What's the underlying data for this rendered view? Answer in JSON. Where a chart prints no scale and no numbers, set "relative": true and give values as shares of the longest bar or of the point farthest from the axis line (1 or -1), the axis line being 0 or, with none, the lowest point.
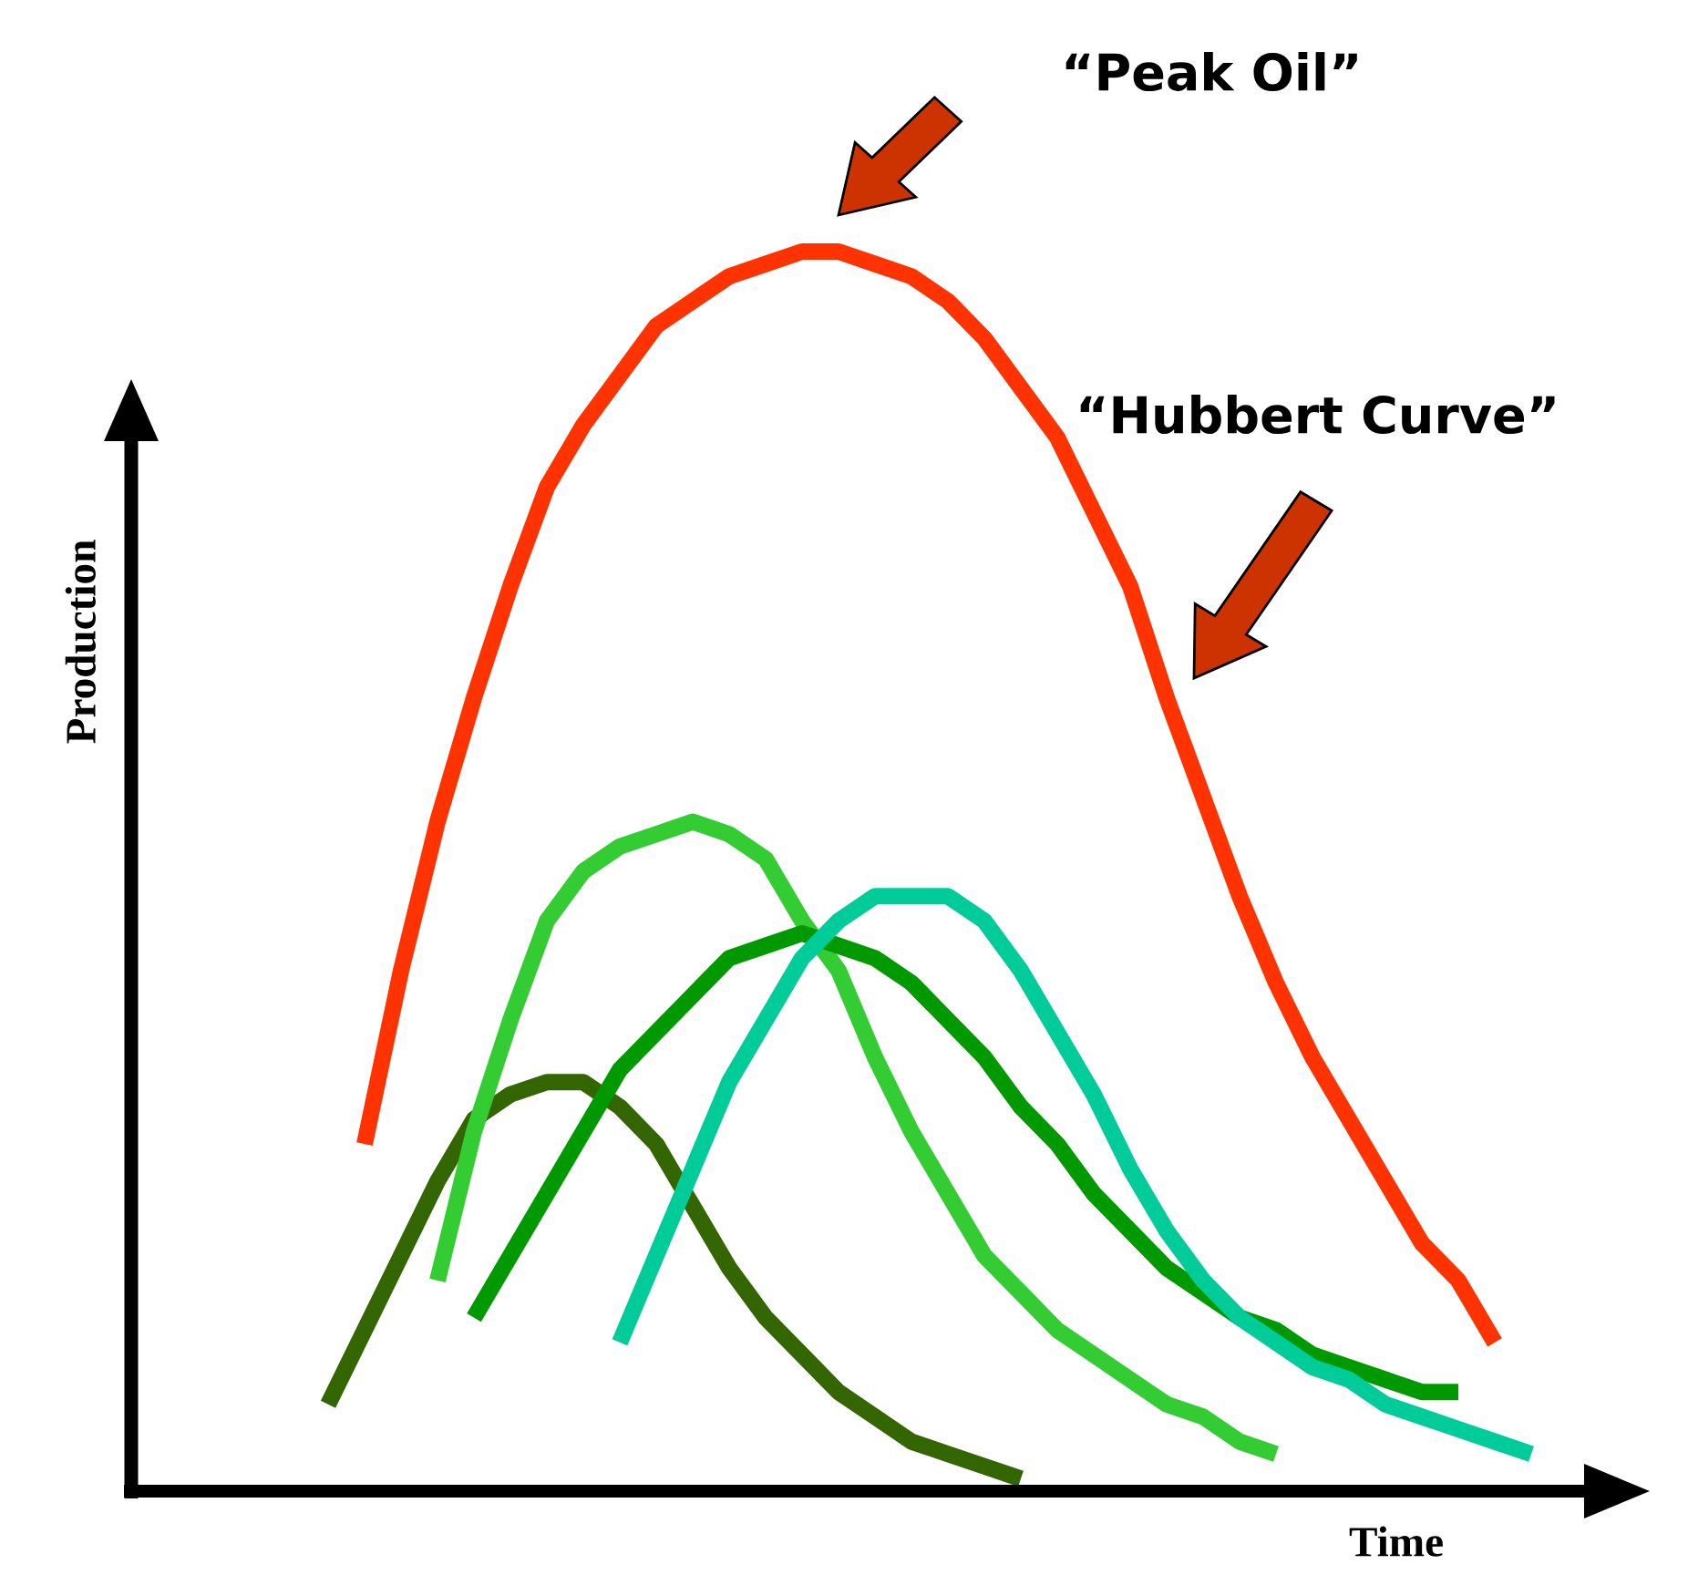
{
  "chart_data": {
    "type": "line",
    "relative": true,
    "xlabel": "Time",
    "ylabel": "Production",
    "categories": [
      null,
      null,
      null,
      null,
      null,
      null,
      null,
      null,
      null,
      null,
      null,
      null,
      null,
      null,
      null,
      null,
      null,
      null,
      null,
      null,
      null,
      null,
      null,
      null,
      null,
      null,
      null,
      null,
      null,
      null,
      null,
      null,
      null,
      null
    ],
    "series": [
      {
        "color": "#ff3300",
        "values": [
          null,
          0.28,
          0.42,
          0.54,
          0.64,
          0.73,
          0.81,
          0.86,
          0.9,
          0.94,
          0.96,
          0.98,
          0.99,
          1.0,
          1.0,
          0.99,
          0.98,
          0.96,
          0.93,
          0.89,
          0.85,
          0.79,
          0.73,
          0.64,
          0.56,
          0.48,
          0.41,
          0.35,
          0.3,
          0.25,
          0.2,
          0.17,
          0.12,
          null
        ]
      },
      {
        "color": "#336600",
        "values": [
          0.07,
          0.13,
          0.19,
          0.25,
          0.3,
          0.32,
          0.33,
          0.33,
          0.31,
          0.28,
          0.23,
          0.18,
          0.14,
          0.11,
          0.08,
          0.06,
          0.04,
          0.03,
          0.02,
          0.01,
          null,
          null,
          null,
          null,
          null,
          null,
          null,
          null,
          null,
          null,
          null,
          null,
          null,
          null
        ]
      },
      {
        "color": "#33cc33",
        "values": [
          null,
          null,
          null,
          0.17,
          0.29,
          0.38,
          0.46,
          0.5,
          0.52,
          0.53,
          0.54,
          0.53,
          0.51,
          0.46,
          0.42,
          0.35,
          0.29,
          0.24,
          0.19,
          0.16,
          0.13,
          0.11,
          0.09,
          0.07,
          0.06,
          0.04,
          0.03,
          null,
          null,
          null,
          null,
          null,
          null,
          null
        ]
      },
      {
        "color": "#009900",
        "values": [
          null,
          null,
          null,
          null,
          0.14,
          0.19,
          0.24,
          0.29,
          0.34,
          0.37,
          0.4,
          0.43,
          0.44,
          0.45,
          0.44,
          0.43,
          0.41,
          0.38,
          0.35,
          0.31,
          0.28,
          0.24,
          0.21,
          0.18,
          0.16,
          0.14,
          0.13,
          0.11,
          0.1,
          0.09,
          0.08,
          0.08,
          null,
          null
        ]
      },
      {
        "color": "#00cc99",
        "values": [
          null,
          null,
          null,
          null,
          null,
          null,
          null,
          null,
          0.12,
          0.19,
          0.26,
          0.33,
          0.38,
          0.43,
          0.46,
          0.48,
          0.48,
          0.48,
          0.46,
          0.42,
          0.37,
          0.32,
          0.26,
          0.21,
          0.17,
          0.14,
          0.12,
          0.1,
          0.09,
          0.07,
          0.06,
          0.05,
          0.04,
          0.03
        ]
      }
    ],
    "annotations": [
      "“Peak Oil”",
      "“Hubbert Curve”"
    ],
    "line_style": "solid",
    "grid": false,
    "legend": false
  }
}
